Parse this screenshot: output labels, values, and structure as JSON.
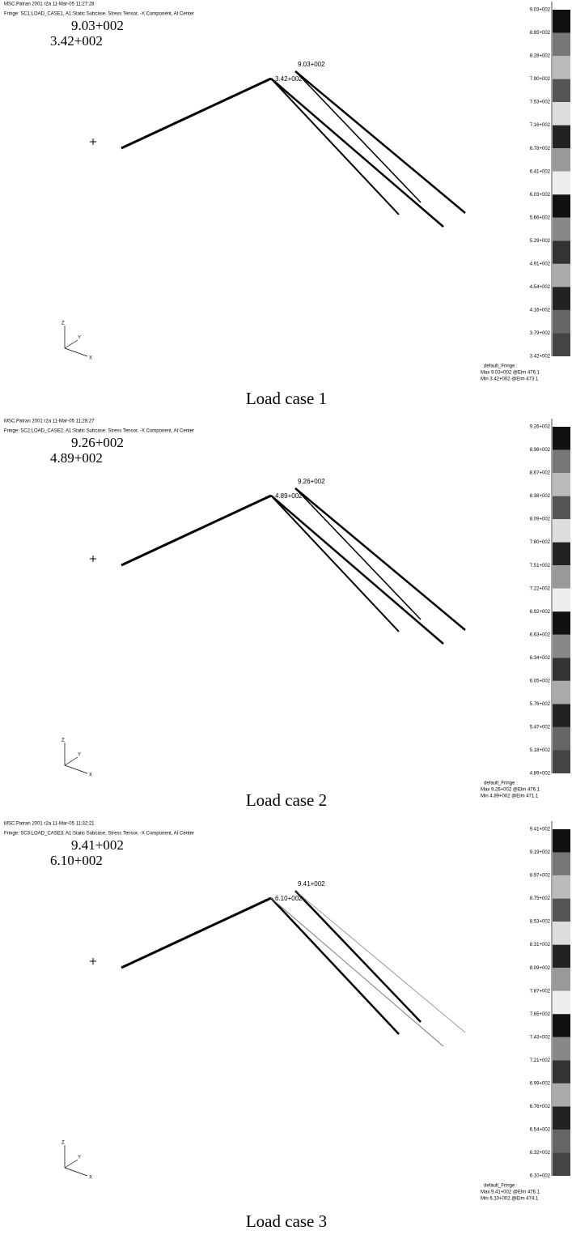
{
  "panels": [
    {
      "header": [
        "MSC.Patran 2001 r2a 11-Mar-05 11:27:28",
        "Fringe: SC1:LOAD_CASE1, A1:Static Subcase, Stress Tensor, -X Component, At Center"
      ],
      "max": "9.03+002",
      "min": "3.42+002",
      "node_max": "9.03+002",
      "node_min": "3.42+002",
      "legend": [
        "9.03+002",
        "8.65+002",
        "8.28+002",
        "7.90+002",
        "7.53+002",
        "7.16+002",
        "6.78+002",
        "6.41+002",
        "6.03+002",
        "5.66+002",
        "5.29+002",
        "4.91+002",
        "4.54+002",
        "4.16+002",
        "3.79+002",
        "3.42+002"
      ],
      "legend_title": "default_Fringe :",
      "legend_max": "Max 9.03+002 @Elm 476.1",
      "legend_min": "Min 3.42+002 @Elm 473.1",
      "axis": [
        "Z",
        "Y",
        "X"
      ],
      "caption": "Load case 1"
    },
    {
      "header": [
        "MSC.Patran 2001 r2a 11-Mar-05 11:28:27",
        "Fringe: SC2:LOAD_CASE2, A1:Static Subcase, Stress Tensor, -X Component, At Center"
      ],
      "max": "9.26+002",
      "min": "4.89+002",
      "node_max": "9.26+002",
      "node_min": "4.89+002",
      "legend": [
        "9.26+002",
        "8.96+002",
        "8.67+002",
        "8.38+002",
        "8.09+002",
        "7.80+002",
        "7.51+002",
        "7.22+002",
        "6.92+002",
        "6.63+002",
        "6.34+002",
        "6.05+002",
        "5.76+002",
        "5.47+002",
        "5.18+002",
        "4.89+002"
      ],
      "legend_title": "default_Fringe :",
      "legend_max": "Max 9.26+002 @Elm 476.1",
      "legend_min": "Min 4.89+002 @Elm 471.1",
      "axis": [
        "Z",
        "Y",
        "X"
      ],
      "caption": "Load case 2"
    },
    {
      "header": [
        "MSC.Patran 2001 r2a 11-Mar-05 11:32:21",
        "Fringe: SC3:LOAD_CASE3, A1:Static Subcase, Stress Tensor, -X Component, At Center"
      ],
      "max": "9.41+002",
      "min": "6.10+002",
      "node_max": "9.41+002",
      "node_min": "6.10+002",
      "legend": [
        "9.41+002",
        "9.19+002",
        "8.97+002",
        "8.75+002",
        "8.53+002",
        "8.31+002",
        "8.09+002",
        "7.87+002",
        "7.65+002",
        "7.43+002",
        "7.21+002",
        "6.99+002",
        "6.76+002",
        "6.54+002",
        "6.32+002",
        "6.10+002"
      ],
      "legend_title": "default_Fringe :",
      "legend_max": "Max 9.41+002 @Elm 476.1",
      "legend_min": "Min 6.10+002 @Elm 474.1",
      "axis": [
        "Z",
        "Y",
        "X"
      ],
      "caption": "Load case 3"
    }
  ]
}
